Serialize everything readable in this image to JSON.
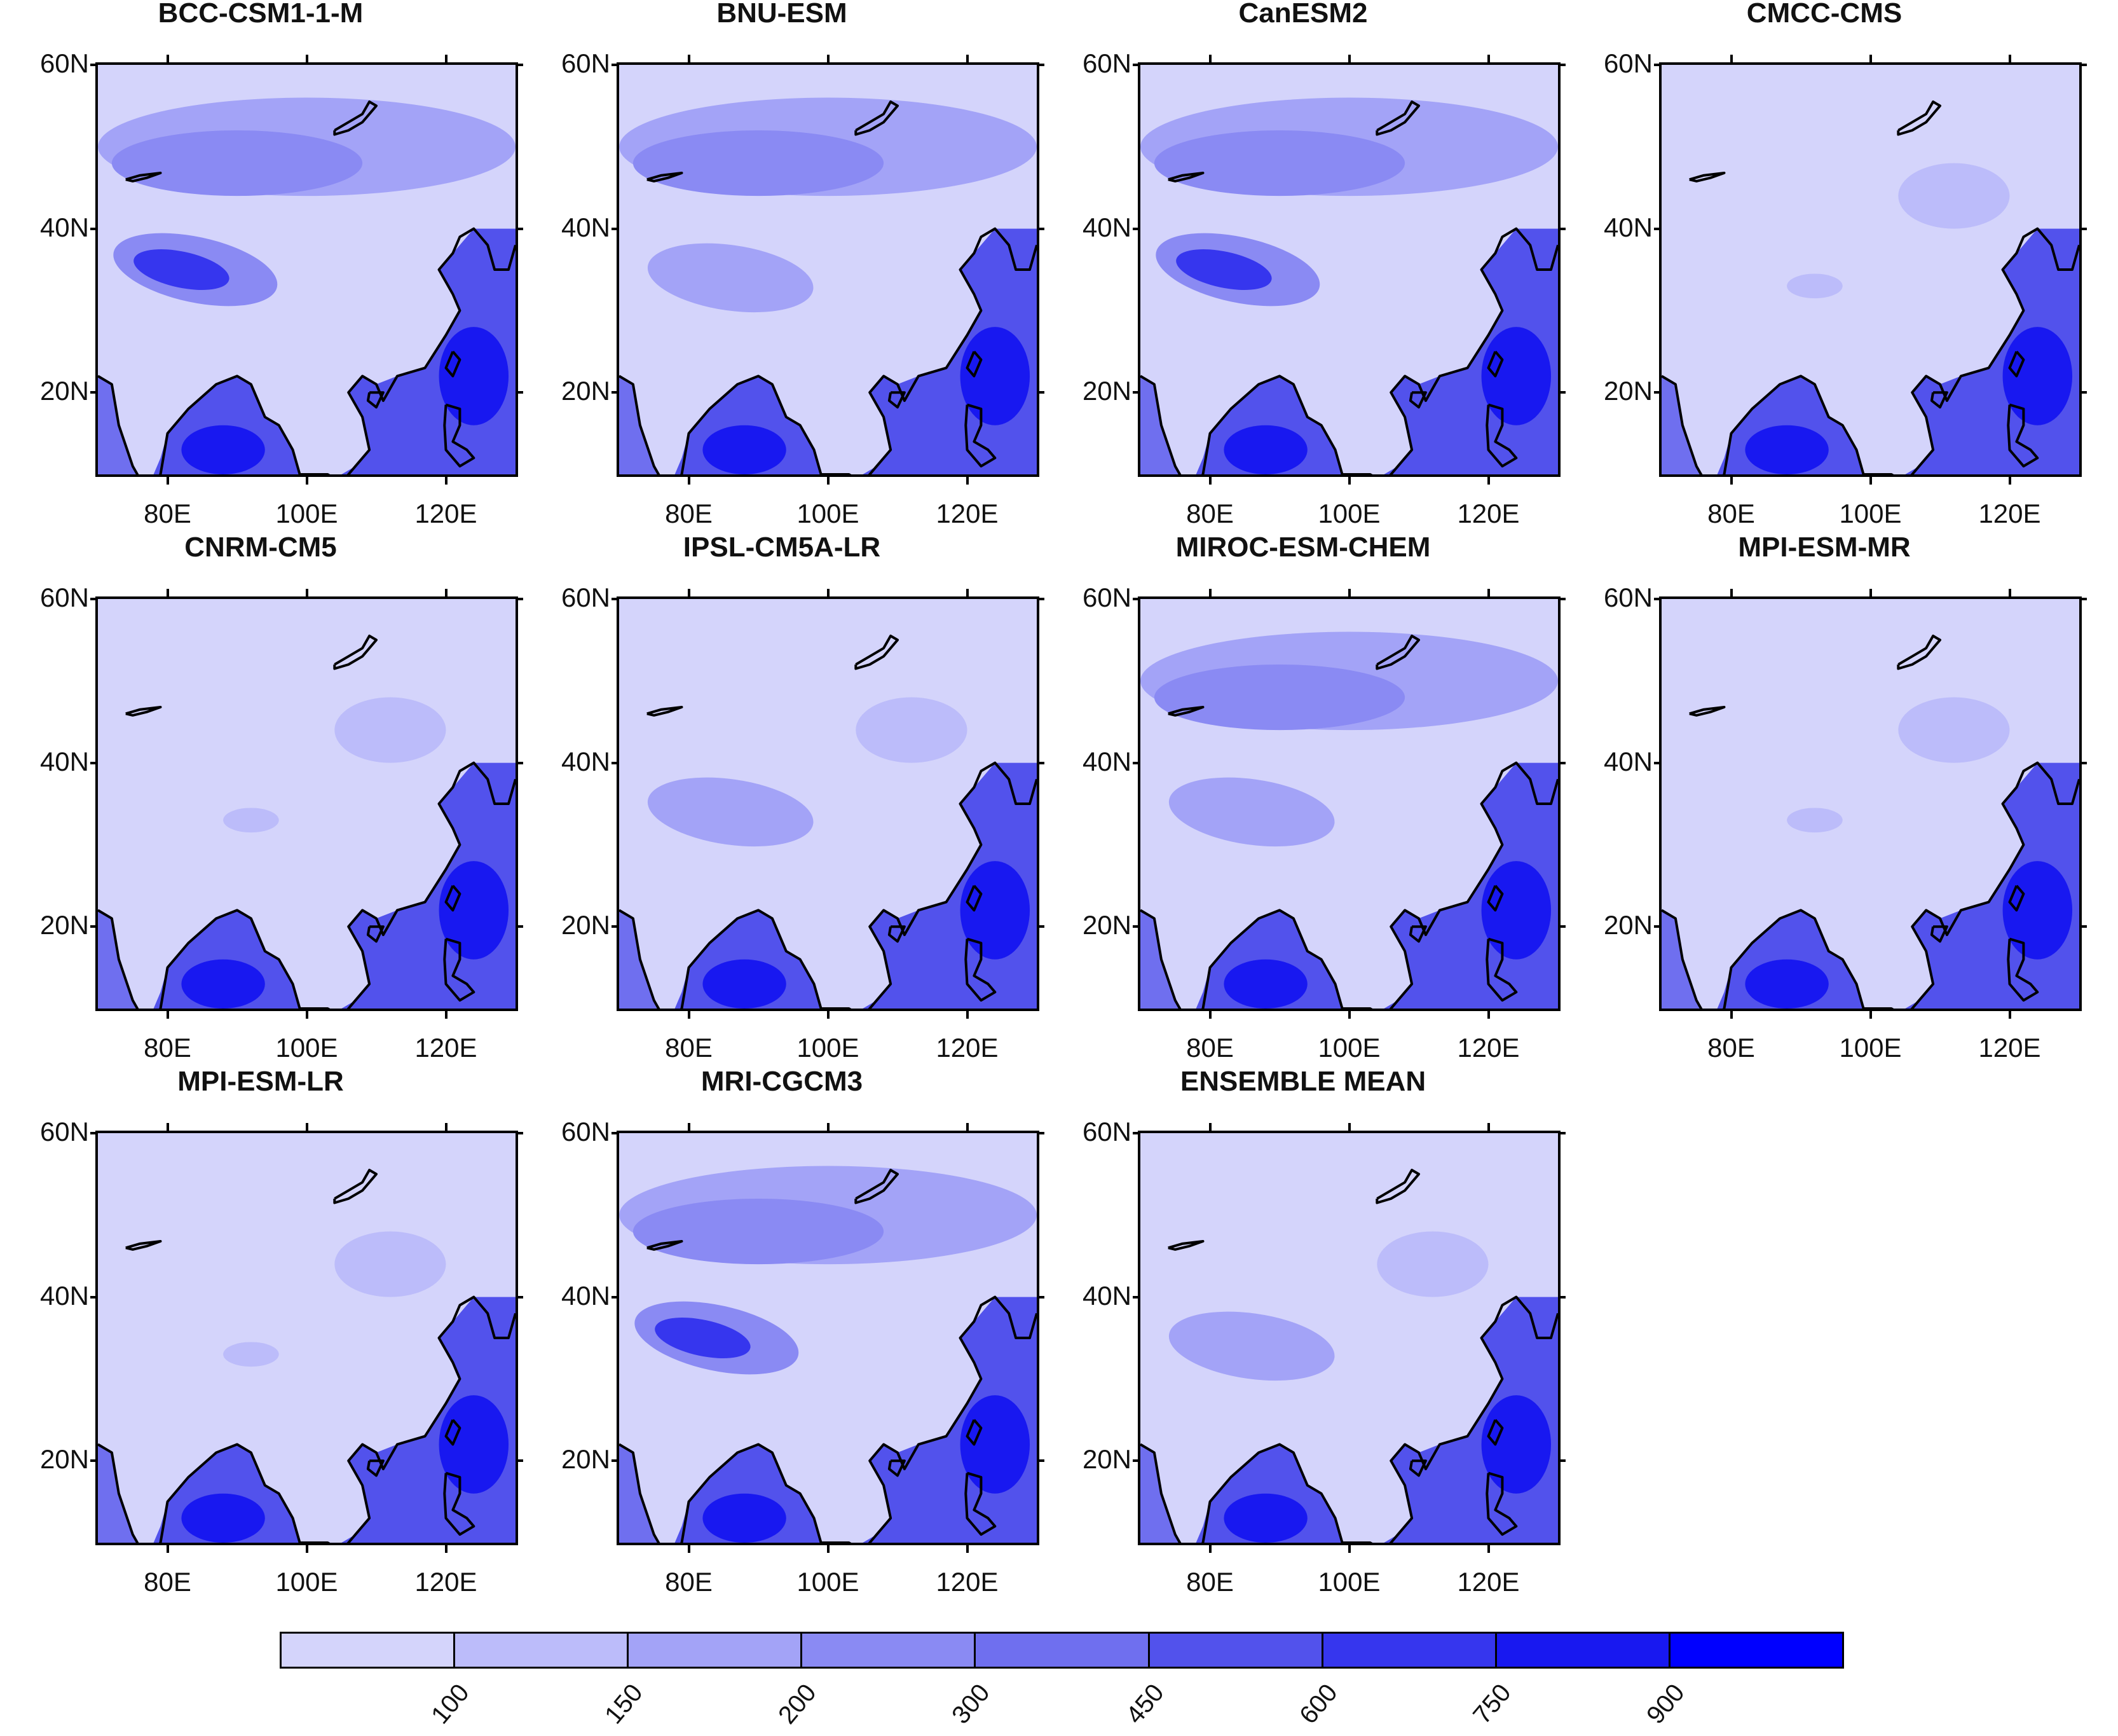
{
  "figure": {
    "panels": [
      {
        "title": "BCC-CSM1-1-M",
        "style": "tibet-strong"
      },
      {
        "title": "BNU-ESM",
        "style": "north-band"
      },
      {
        "title": "CanESM2",
        "style": "tibet-strong"
      },
      {
        "title": "CMCC-CMS",
        "style": "dry"
      },
      {
        "title": "CNRM-CM5",
        "style": "dry"
      },
      {
        "title": "IPSL-CM5A-LR",
        "style": "tibet-weak"
      },
      {
        "title": "MIROC-ESM-CHEM",
        "style": "north-band"
      },
      {
        "title": "MPI-ESM-MR",
        "style": "dry"
      },
      {
        "title": "MPI-ESM-LR",
        "style": "dry"
      },
      {
        "title": "MRI-CGCM3",
        "style": "tibet-strong"
      },
      {
        "title": "ENSEMBLE MEAN",
        "style": "tibet-weak"
      }
    ],
    "lat_ticks": [
      "60N",
      "40N",
      "20N"
    ],
    "lon_ticks": [
      "80E",
      "100E",
      "120E"
    ],
    "colorbar": {
      "levels": [
        "100",
        "150",
        "200",
        "300",
        "450",
        "600",
        "750",
        "900"
      ],
      "colors": [
        "#d4d4fb",
        "#bcbcfa",
        "#a3a3f7",
        "#8a8af3",
        "#6f6fef",
        "#5252ec",
        "#3636ee",
        "#1818f0",
        "#0000ff"
      ]
    }
  }
}
